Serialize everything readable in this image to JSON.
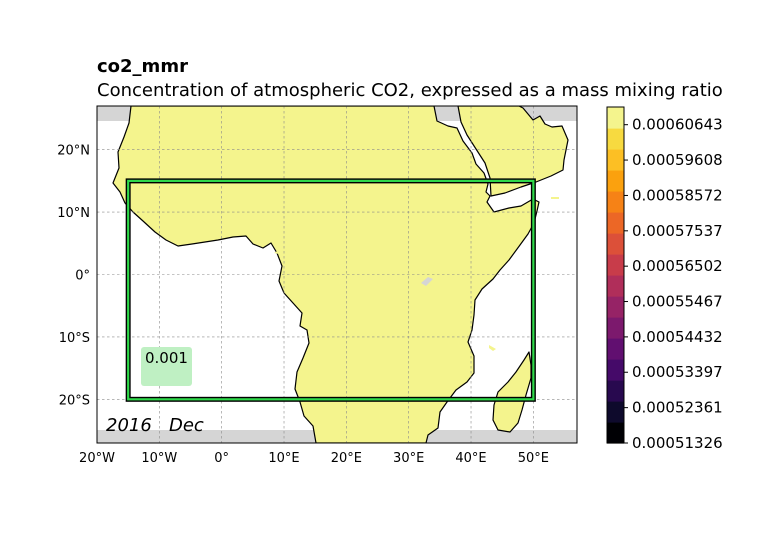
{
  "chart_data": {
    "type": "heatmap",
    "title": "co2_mmr",
    "subtitle": "Concentration of atmospheric CO2, expressed as a mass mixing ratio",
    "xlim": [
      -20,
      57
    ],
    "ylim": [
      -27,
      27
    ],
    "x_ticks": [
      {
        "value": -20,
        "label": "20°W"
      },
      {
        "value": -10,
        "label": "10°W"
      },
      {
        "value": 0,
        "label": "0°"
      },
      {
        "value": 10,
        "label": "10°E"
      },
      {
        "value": 20,
        "label": "20°E"
      },
      {
        "value": 30,
        "label": "30°E"
      },
      {
        "value": 40,
        "label": "40°E"
      },
      {
        "value": 50,
        "label": "50°E"
      }
    ],
    "y_ticks": [
      {
        "value": 20,
        "label": "20°N"
      },
      {
        "value": 10,
        "label": "10°N"
      },
      {
        "value": 0,
        "label": "0°"
      },
      {
        "value": -10,
        "label": "10°S"
      },
      {
        "value": -20,
        "label": "20°S"
      }
    ],
    "grid": true,
    "region_box": {
      "lon": [
        -15,
        50
      ],
      "lat": [
        -20,
        15
      ]
    },
    "annotation": "0.001",
    "date_label": "2016   Dec",
    "data_extent": {
      "lat_min": -25,
      "lat_max": 25
    },
    "field_value": 0.00060643,
    "colorbar": {
      "min": 0.00051326,
      "max": 0.00061161,
      "ticks": [
        "0.00051326",
        "0.00052361",
        "0.00053397",
        "0.00054432",
        "0.00055467",
        "0.00056502",
        "0.00057537",
        "0.00058572",
        "0.00059608",
        "0.00060643"
      ],
      "colors": [
        "#000004",
        "#0e0a2c",
        "#28094f",
        "#450a69",
        "#610f70",
        "#7c196d",
        "#962366",
        "#b02e5a",
        "#c83c4a",
        "#dc5039",
        "#ec6726",
        "#f68216",
        "#fba10e",
        "#fcbf24",
        "#f7da40",
        "#f4f48d"
      ]
    },
    "colors": {
      "field": "#f4f48d",
      "missing": "#d5d5d5",
      "box_outer": "#000000",
      "box_inner": "#2fd94a",
      "annotation_bg": "#bff0c3"
    }
  }
}
